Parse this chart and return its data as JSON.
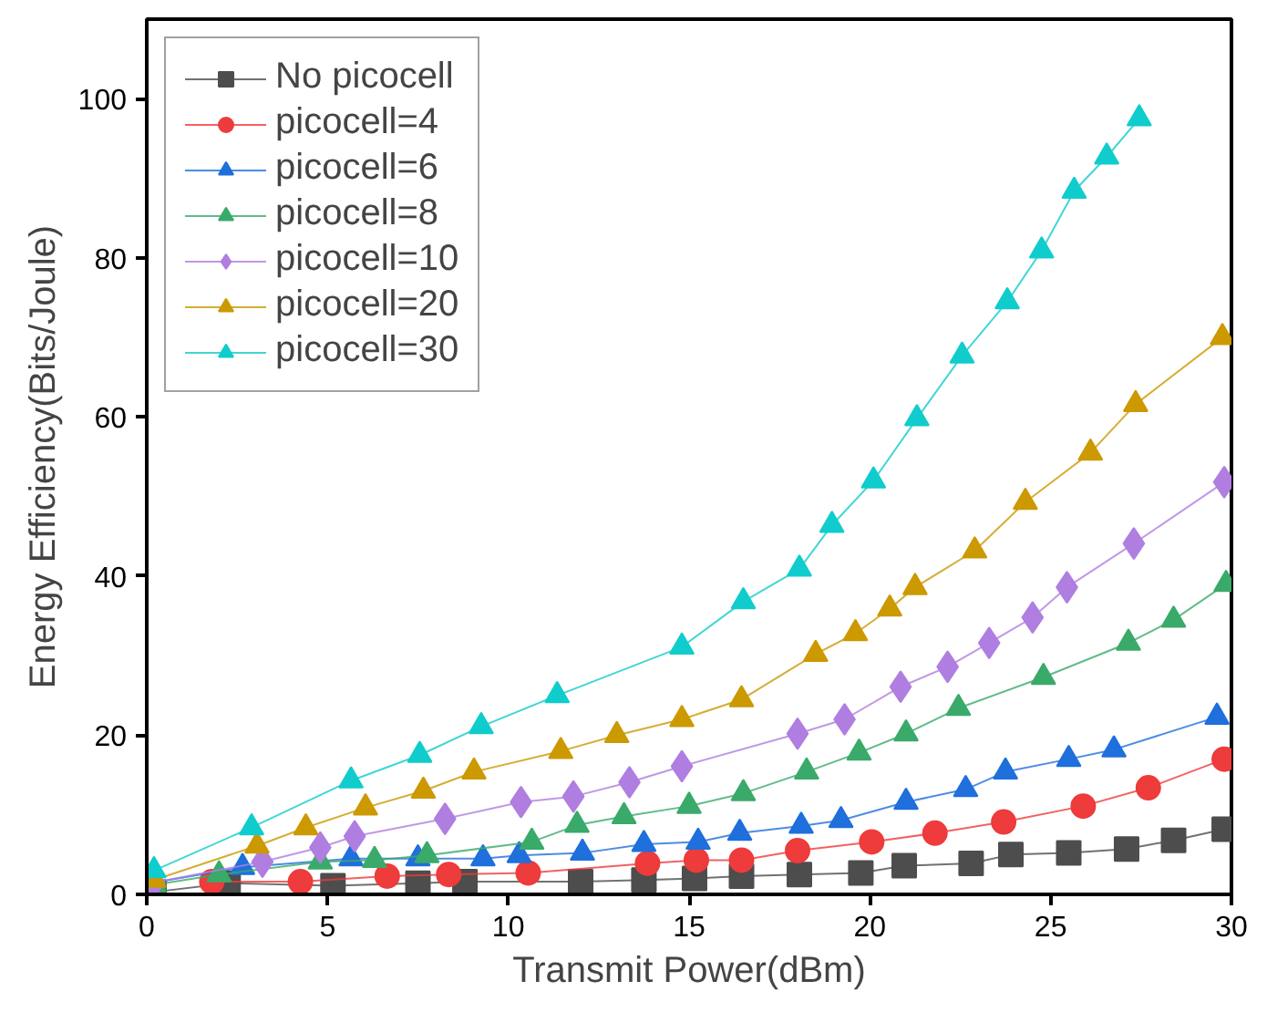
{
  "chart_data": {
    "type": "line",
    "xlabel": "Transmit Power(dBm)",
    "ylabel": "Energy Efficiency(Bits/Joule)",
    "xlim": [
      0,
      30
    ],
    "ylim": [
      0,
      110
    ],
    "xticks": [
      0,
      5,
      10,
      15,
      20,
      25,
      30
    ],
    "yticks": [
      0,
      20,
      40,
      60,
      80,
      100
    ],
    "grid": false,
    "legend": "top left",
    "line_style": "solid",
    "series": [
      {
        "name": "No picocell",
        "color": "#4d4d4d",
        "marker": "square",
        "x": [
          0.2,
          2.25,
          5.15,
          7.5,
          8.8,
          12,
          13.75,
          15.15,
          16.45,
          18.05,
          19.75,
          20.95,
          22.8,
          23.9,
          25.5,
          27.1,
          28.4,
          29.8
        ],
        "values": [
          0.3,
          1.4,
          1.1,
          1.4,
          1.6,
          1.6,
          1.8,
          2,
          2.3,
          2.5,
          2.7,
          3.6,
          3.9,
          5,
          5.2,
          5.7,
          6.8,
          8.2
        ]
      },
      {
        "name": "picocell=4",
        "color": "#ee3b3b",
        "marker": "circle",
        "x": [
          1.8,
          4.25,
          6.65,
          8.35,
          10.55,
          13.85,
          15.2,
          16.45,
          18,
          20.05,
          21.8,
          23.7,
          25.9,
          27.7,
          29.8
        ],
        "values": [
          1.6,
          1.6,
          2.3,
          2.5,
          2.7,
          3.9,
          4.3,
          4.3,
          5.5,
          6.6,
          7.7,
          9.1,
          11.1,
          13.4,
          17
        ]
      },
      {
        "name": "picocell=6",
        "color": "#1f6fdc",
        "marker": "triangle",
        "x": [
          0.2,
          2.65,
          5.65,
          7.5,
          9.3,
          10.3,
          12.05,
          13.75,
          15.25,
          16.4,
          18.1,
          19.2,
          21,
          22.65,
          23.75,
          25.5,
          26.75,
          29.6
        ],
        "values": [
          1.5,
          3.4,
          4.5,
          4.5,
          4.5,
          4.9,
          5.2,
          6.3,
          6.6,
          7.7,
          8.6,
          9.3,
          11.6,
          13.2,
          15.4,
          17,
          18.2,
          22.3
        ]
      },
      {
        "name": "picocell=8",
        "color": "#3aaa6a",
        "marker": "triangle",
        "x": [
          0.2,
          2,
          4.8,
          6.3,
          7.75,
          10.65,
          11.9,
          13.2,
          15,
          16.5,
          18.25,
          19.7,
          21,
          22.45,
          24.8,
          27.15,
          28.4,
          29.85
        ],
        "values": [
          1.2,
          2.5,
          4.1,
          4.3,
          4.9,
          6.6,
          8.7,
          9.8,
          11.1,
          12.7,
          15.4,
          17.8,
          20.2,
          23.4,
          27.3,
          31.6,
          34.5,
          39
        ]
      },
      {
        "name": "picocell=10",
        "color": "#b07ee0",
        "marker": "diamond",
        "x": [
          0.2,
          3.2,
          4.8,
          5.75,
          8.25,
          10.35,
          11.8,
          13.35,
          14.8,
          18,
          19.3,
          20.85,
          22.15,
          23.3,
          24.5,
          25.45,
          27.3,
          29.8
        ],
        "values": [
          1.5,
          4.1,
          5.9,
          7.3,
          9.5,
          11.6,
          12.3,
          14.1,
          16.1,
          20.2,
          22,
          26.1,
          28.6,
          31.6,
          34.8,
          38.6,
          44.1,
          51.8
        ]
      },
      {
        "name": "picocell=20",
        "color": "#cc9900",
        "marker": "triangle",
        "x": [
          0.2,
          3.05,
          4.4,
          6.05,
          7.65,
          9.05,
          11.45,
          13,
          14.8,
          16.45,
          18.5,
          19.6,
          20.55,
          21.25,
          22.9,
          24.3,
          26.1,
          27.35,
          29.75
        ],
        "values": [
          1.8,
          6.1,
          8.4,
          10.9,
          13,
          15.4,
          18,
          20,
          22,
          24.5,
          30.2,
          32.8,
          35.9,
          38.6,
          43.2,
          49.3,
          55.5,
          61.6,
          70
        ]
      },
      {
        "name": "picocell=30",
        "color": "#11cccc",
        "marker": "triangle",
        "x": [
          0.2,
          2.9,
          5.65,
          7.55,
          9.25,
          11.35,
          14.8,
          16.5,
          18.05,
          18.95,
          20.1,
          21.3,
          22.55,
          23.8,
          24.75,
          25.65,
          26.55,
          27.45
        ],
        "values": [
          3,
          8.4,
          14.3,
          17.5,
          21.1,
          25,
          31.1,
          36.8,
          40.9,
          46.4,
          52,
          59.8,
          67.7,
          74.5,
          80.9,
          88.4,
          92.7,
          97.5
        ]
      }
    ]
  }
}
